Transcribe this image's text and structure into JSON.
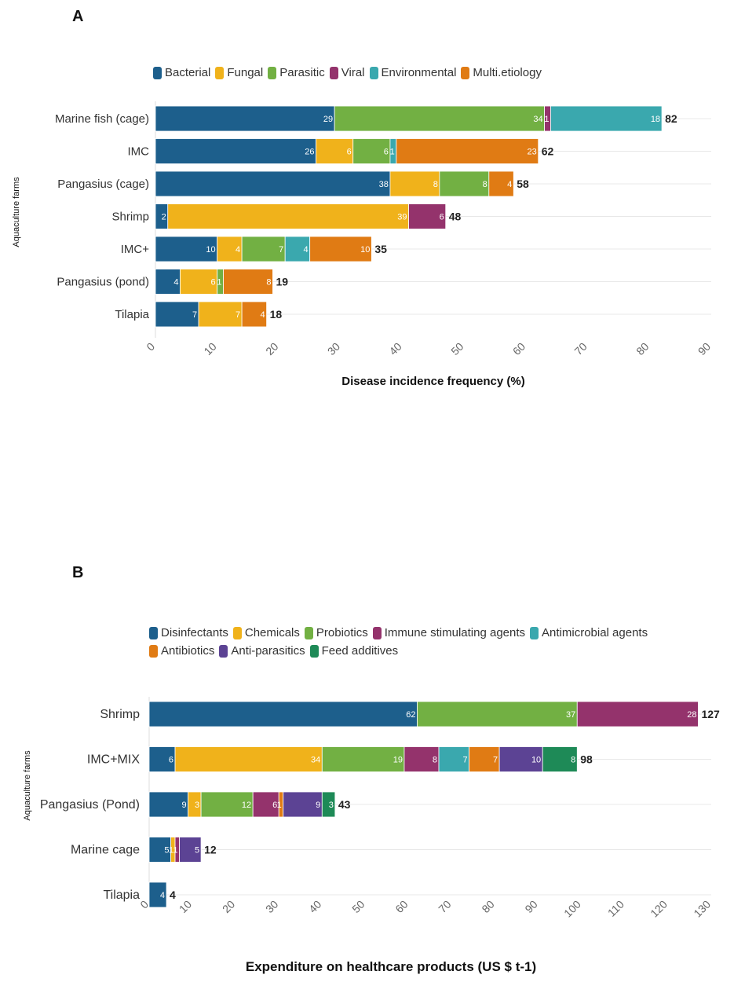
{
  "chart_data": [
    {
      "panel": "A",
      "type": "bar",
      "stacked": true,
      "orientation": "horizontal",
      "xlabel": "Disease incidence frequency (%)",
      "ylabel": "Aquaculture farms",
      "xlim": [
        0,
        90
      ],
      "xticks": [
        "0",
        "10",
        "20",
        "30",
        "40",
        "50",
        "60",
        "70",
        "80",
        "90"
      ],
      "categories": [
        "Marine fish  (cage)",
        "IMC",
        "Pangasius (cage)",
        "Shrimp",
        "IMC+",
        "Pangasius (pond)",
        "Tilapia"
      ],
      "totals": [
        "82",
        "62",
        "58",
        "48",
        "35",
        "19",
        "18"
      ],
      "series": [
        {
          "name": "Bacterial",
          "color": "#1d5f8c",
          "values": [
            29,
            26,
            38,
            2,
            10,
            4,
            7
          ]
        },
        {
          "name": "Fungal",
          "color": "#f0b21b",
          "values": [
            0,
            6,
            8,
            39,
            4,
            6,
            7
          ]
        },
        {
          "name": "Parasitic",
          "color": "#72b043",
          "values": [
            34,
            6,
            8,
            0,
            7,
            1,
            0
          ]
        },
        {
          "name": "Viral",
          "color": "#94336c",
          "values": [
            1,
            0,
            0,
            6,
            0,
            0,
            0
          ]
        },
        {
          "name": "Environmental",
          "color": "#3aa8ae",
          "values": [
            18,
            1,
            0,
            0,
            4,
            0,
            0
          ]
        },
        {
          "name": "Multi.etiology",
          "color": "#e07b14",
          "values": [
            0,
            23,
            4,
            0,
            10,
            8,
            4
          ]
        }
      ]
    },
    {
      "panel": "B",
      "type": "bar",
      "stacked": true,
      "orientation": "horizontal",
      "xlabel": "Expenditure on healthcare products (US $ t-1)",
      "ylabel": "Aquaculture farms",
      "xlim": [
        0,
        130
      ],
      "xticks": [
        "0",
        "10",
        "20",
        "30",
        "40",
        "50",
        "60",
        "70",
        "80",
        "90",
        "100",
        "110",
        "120",
        "130"
      ],
      "categories": [
        "Shrimp",
        "IMC+MIX",
        "Pangasius (Pond)",
        "Marine cage",
        "Tilapia"
      ],
      "totals": [
        "127",
        "98",
        "43",
        "12",
        "4"
      ],
      "series": [
        {
          "name": "Disinfectants",
          "color": "#1d5f8c",
          "values": [
            62,
            6,
            9,
            5,
            4
          ]
        },
        {
          "name": "Chemicals",
          "color": "#f0b21b",
          "values": [
            0,
            34,
            3,
            1,
            0
          ]
        },
        {
          "name": "Probiotics",
          "color": "#72b043",
          "values": [
            37,
            19,
            12,
            0,
            0
          ]
        },
        {
          "name": "Immune stimulating agents",
          "color": "#94336c",
          "values": [
            28,
            8,
            6,
            1,
            0
          ]
        },
        {
          "name": "Antimicrobial agents",
          "color": "#3aa8ae",
          "values": [
            0,
            7,
            0,
            0,
            0
          ]
        },
        {
          "name": "Antibiotics",
          "color": "#e07b14",
          "values": [
            0,
            7,
            1,
            0,
            0
          ]
        },
        {
          "name": "Anti-parasitics",
          "color": "#5c4394",
          "values": [
            0,
            10,
            9,
            5,
            0
          ]
        },
        {
          "name": "Feed additives",
          "color": "#1e8a57",
          "values": [
            0,
            8,
            3,
            0,
            0
          ]
        }
      ]
    }
  ]
}
